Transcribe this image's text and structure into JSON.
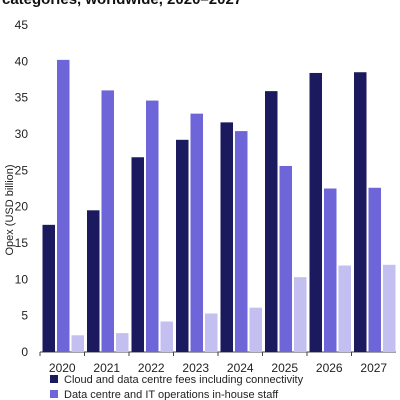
{
  "chart_data": {
    "type": "bar",
    "title": "categories, worldwide, 2020–2027",
    "ylabel": "Opex (USD billion)",
    "xlabel": "",
    "ylim": [
      0,
      45
    ],
    "yticks": [
      0,
      5,
      10,
      15,
      20,
      25,
      30,
      35,
      40,
      45
    ],
    "categories": [
      "2020",
      "2021",
      "2022",
      "2023",
      "2024",
      "2025",
      "2026",
      "2027"
    ],
    "grid": false,
    "legend_position": "bottom",
    "series": [
      {
        "name": "Cloud and data centre fees including connectivity",
        "color": "#1c1a5e",
        "values": [
          17.5,
          19.5,
          26.8,
          29.2,
          31.6,
          35.9,
          38.4,
          38.5
        ]
      },
      {
        "name": "Data centre and IT operations in-house staff",
        "color": "#6e66d8",
        "values": [
          40.2,
          36.0,
          34.6,
          32.8,
          30.4,
          25.6,
          22.5,
          22.6
        ]
      },
      {
        "name": "",
        "color": "#c3bff0",
        "values": [
          2.3,
          2.6,
          4.2,
          5.3,
          6.1,
          10.3,
          11.9,
          12.0
        ]
      }
    ]
  }
}
